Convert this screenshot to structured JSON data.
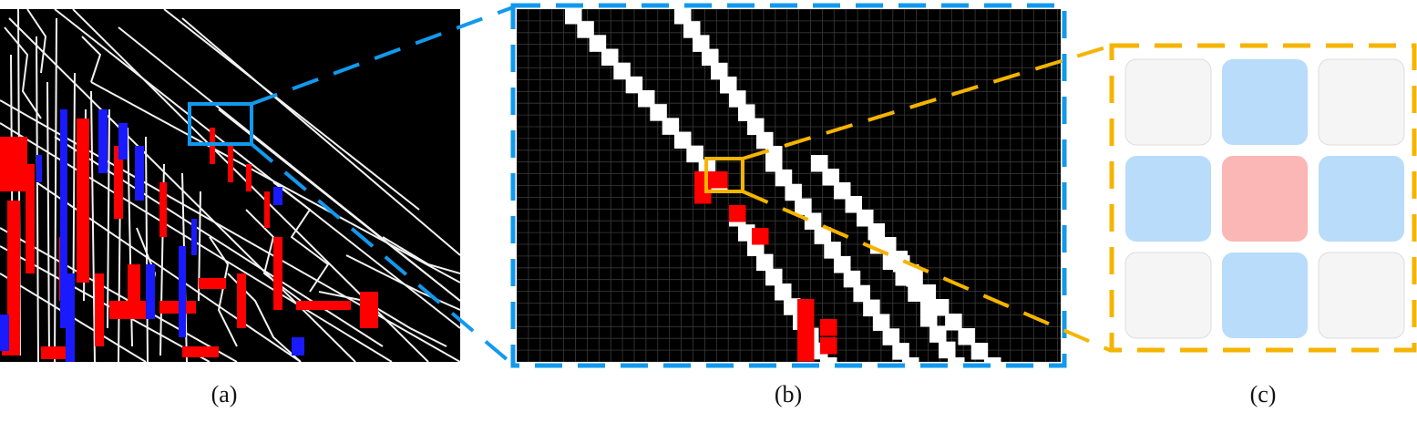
{
  "figure": {
    "captions": {
      "a": "(a)",
      "b": "(b)",
      "c": "(c)"
    },
    "colors": {
      "background": "#000000",
      "edge": "#ffffff",
      "red_points": "#ff0000",
      "blue_points": "#1a1aff",
      "zoom_blue": "#1199ee",
      "zoom_orange": "#f5b400",
      "neighbor_gray": "#f5f5f5",
      "neighbor_blue": "#b8dcfa",
      "center_red": "#fbb6b6"
    },
    "panel_c_grid": [
      [
        "gray",
        "blue",
        "gray"
      ],
      [
        "blue",
        "red",
        "blue"
      ],
      [
        "gray",
        "blue",
        "gray"
      ]
    ]
  }
}
